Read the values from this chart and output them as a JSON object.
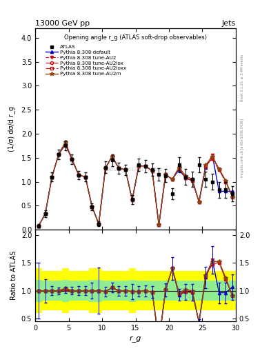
{
  "title_top": "13000 GeV pp",
  "title_right": "Jets",
  "plot_title": "Opening angle r_g (ATLAS soft-drop observables)",
  "ylabel_main": "(1/σ) dσ/d r_g",
  "ylabel_ratio": "Ratio to ATLAS",
  "xlabel": "r_g",
  "right_label_top": "Rivet 3.1.10, ≥ 3.4M events",
  "right_label_bottom": "mcplots.cern.ch [arXiv:1306.3436]",
  "watermark": "ATLAS_2019_I1772062",
  "ylim_main": [
    0,
    4.2
  ],
  "ylim_ratio": [
    0.45,
    2.1
  ],
  "xlim": [
    0,
    30
  ],
  "x_ticks_main": [
    0,
    5,
    10,
    15,
    20,
    25,
    30
  ],
  "x_ticks_ratio": [
    0,
    5,
    10,
    15,
    20,
    25,
    30
  ],
  "xdata": [
    0.5,
    1.5,
    2.5,
    3.5,
    4.5,
    5.5,
    6.5,
    7.5,
    8.5,
    9.5,
    10.5,
    11.5,
    12.5,
    13.5,
    14.5,
    15.5,
    16.5,
    17.5,
    18.5,
    19.5,
    20.5,
    21.5,
    22.5,
    23.5,
    24.5,
    25.5,
    26.5,
    27.5,
    28.5,
    29.5
  ],
  "atlas_y": [
    0.08,
    0.33,
    1.1,
    1.57,
    1.75,
    1.47,
    1.14,
    1.1,
    0.48,
    0.12,
    1.3,
    1.45,
    1.28,
    1.25,
    0.63,
    1.35,
    1.33,
    1.25,
    1.15,
    1.13,
    0.75,
    1.35,
    1.1,
    1.05,
    1.35,
    1.05,
    1.0,
    0.83,
    0.83,
    0.75
  ],
  "atlas_yerr": [
    0.04,
    0.07,
    0.09,
    0.1,
    0.1,
    0.1,
    0.09,
    0.09,
    0.07,
    0.05,
    0.12,
    0.12,
    0.11,
    0.11,
    0.09,
    0.13,
    0.13,
    0.13,
    0.13,
    0.13,
    0.11,
    0.16,
    0.16,
    0.16,
    0.16,
    0.16,
    0.16,
    0.16,
    0.16,
    0.16
  ],
  "default_y": [
    0.08,
    0.33,
    1.1,
    1.57,
    1.78,
    1.47,
    1.14,
    1.1,
    0.48,
    0.12,
    1.28,
    1.53,
    1.28,
    1.25,
    0.62,
    1.33,
    1.33,
    1.22,
    0.1,
    1.15,
    1.05,
    1.25,
    1.08,
    1.02,
    0.58,
    1.3,
    1.55,
    0.8,
    0.8,
    0.8
  ],
  "au2_y": [
    0.08,
    0.33,
    1.1,
    1.57,
    1.78,
    1.47,
    1.14,
    1.1,
    0.48,
    0.12,
    1.28,
    1.53,
    1.28,
    1.25,
    0.62,
    1.33,
    1.33,
    1.22,
    0.1,
    1.15,
    1.05,
    1.28,
    1.08,
    1.02,
    0.58,
    1.33,
    1.55,
    1.25,
    1.0,
    0.68
  ],
  "au2lox_y": [
    0.08,
    0.33,
    1.1,
    1.57,
    1.78,
    1.47,
    1.14,
    1.1,
    0.48,
    0.12,
    1.28,
    1.53,
    1.28,
    1.25,
    0.62,
    1.33,
    1.33,
    1.22,
    0.1,
    1.15,
    1.05,
    1.28,
    1.08,
    1.02,
    0.58,
    1.33,
    1.48,
    1.25,
    1.0,
    0.68
  ],
  "au2loxx_y": [
    0.08,
    0.33,
    1.1,
    1.57,
    1.78,
    1.47,
    1.14,
    1.1,
    0.48,
    0.12,
    1.28,
    1.53,
    1.28,
    1.25,
    0.62,
    1.33,
    1.33,
    1.22,
    0.1,
    1.15,
    1.05,
    1.28,
    1.08,
    1.02,
    0.58,
    1.33,
    1.48,
    1.25,
    1.0,
    0.68
  ],
  "au2m_y": [
    0.08,
    0.33,
    1.1,
    1.57,
    1.83,
    1.47,
    1.14,
    1.1,
    0.48,
    0.12,
    1.28,
    1.53,
    1.28,
    1.25,
    0.62,
    1.33,
    1.33,
    1.22,
    0.1,
    1.15,
    1.05,
    1.3,
    1.12,
    1.05,
    0.58,
    1.35,
    1.52,
    1.27,
    1.02,
    0.68
  ],
  "color_default": "#0000cc",
  "color_au2": "#cc0000",
  "color_au2m": "#8B4513",
  "band_yellow_lo": [
    0.6,
    0.65,
    0.65,
    0.65,
    0.6,
    0.65,
    0.65,
    0.65,
    0.6,
    0.6,
    0.65,
    0.65,
    0.65,
    0.65,
    0.6,
    0.65,
    0.65,
    0.65,
    0.65,
    0.65,
    0.65,
    0.65,
    0.65,
    0.65,
    0.65,
    0.65,
    0.65,
    0.65,
    0.65,
    0.65
  ],
  "band_yellow_hi": [
    1.4,
    1.35,
    1.35,
    1.35,
    1.4,
    1.35,
    1.35,
    1.35,
    1.4,
    1.4,
    1.35,
    1.35,
    1.35,
    1.35,
    1.4,
    1.35,
    1.35,
    1.35,
    1.35,
    1.35,
    1.35,
    1.35,
    1.35,
    1.35,
    1.35,
    1.35,
    1.35,
    1.35,
    1.35,
    1.35
  ],
  "band_green_lo": [
    0.8,
    0.82,
    0.82,
    0.82,
    0.8,
    0.82,
    0.82,
    0.82,
    0.8,
    0.8,
    0.82,
    0.82,
    0.82,
    0.82,
    0.8,
    0.82,
    0.82,
    0.82,
    0.82,
    0.82,
    0.82,
    0.82,
    0.82,
    0.82,
    0.82,
    0.82,
    0.82,
    0.82,
    0.82,
    0.82
  ],
  "band_green_hi": [
    1.2,
    1.18,
    1.18,
    1.18,
    1.2,
    1.18,
    1.18,
    1.18,
    1.2,
    1.2,
    1.18,
    1.18,
    1.18,
    1.18,
    1.2,
    1.18,
    1.18,
    1.18,
    1.18,
    1.18,
    1.18,
    1.18,
    1.18,
    1.18,
    1.18,
    1.18,
    1.18,
    1.18,
    1.18,
    1.18
  ],
  "legend_entries": [
    "ATLAS",
    "Pythia 8.308 default",
    "Pythia 8.308 tune-AU2",
    "Pythia 8.308 tune-AU2lox",
    "Pythia 8.308 tune-AU2loxx",
    "Pythia 8.308 tune-AU2m"
  ]
}
